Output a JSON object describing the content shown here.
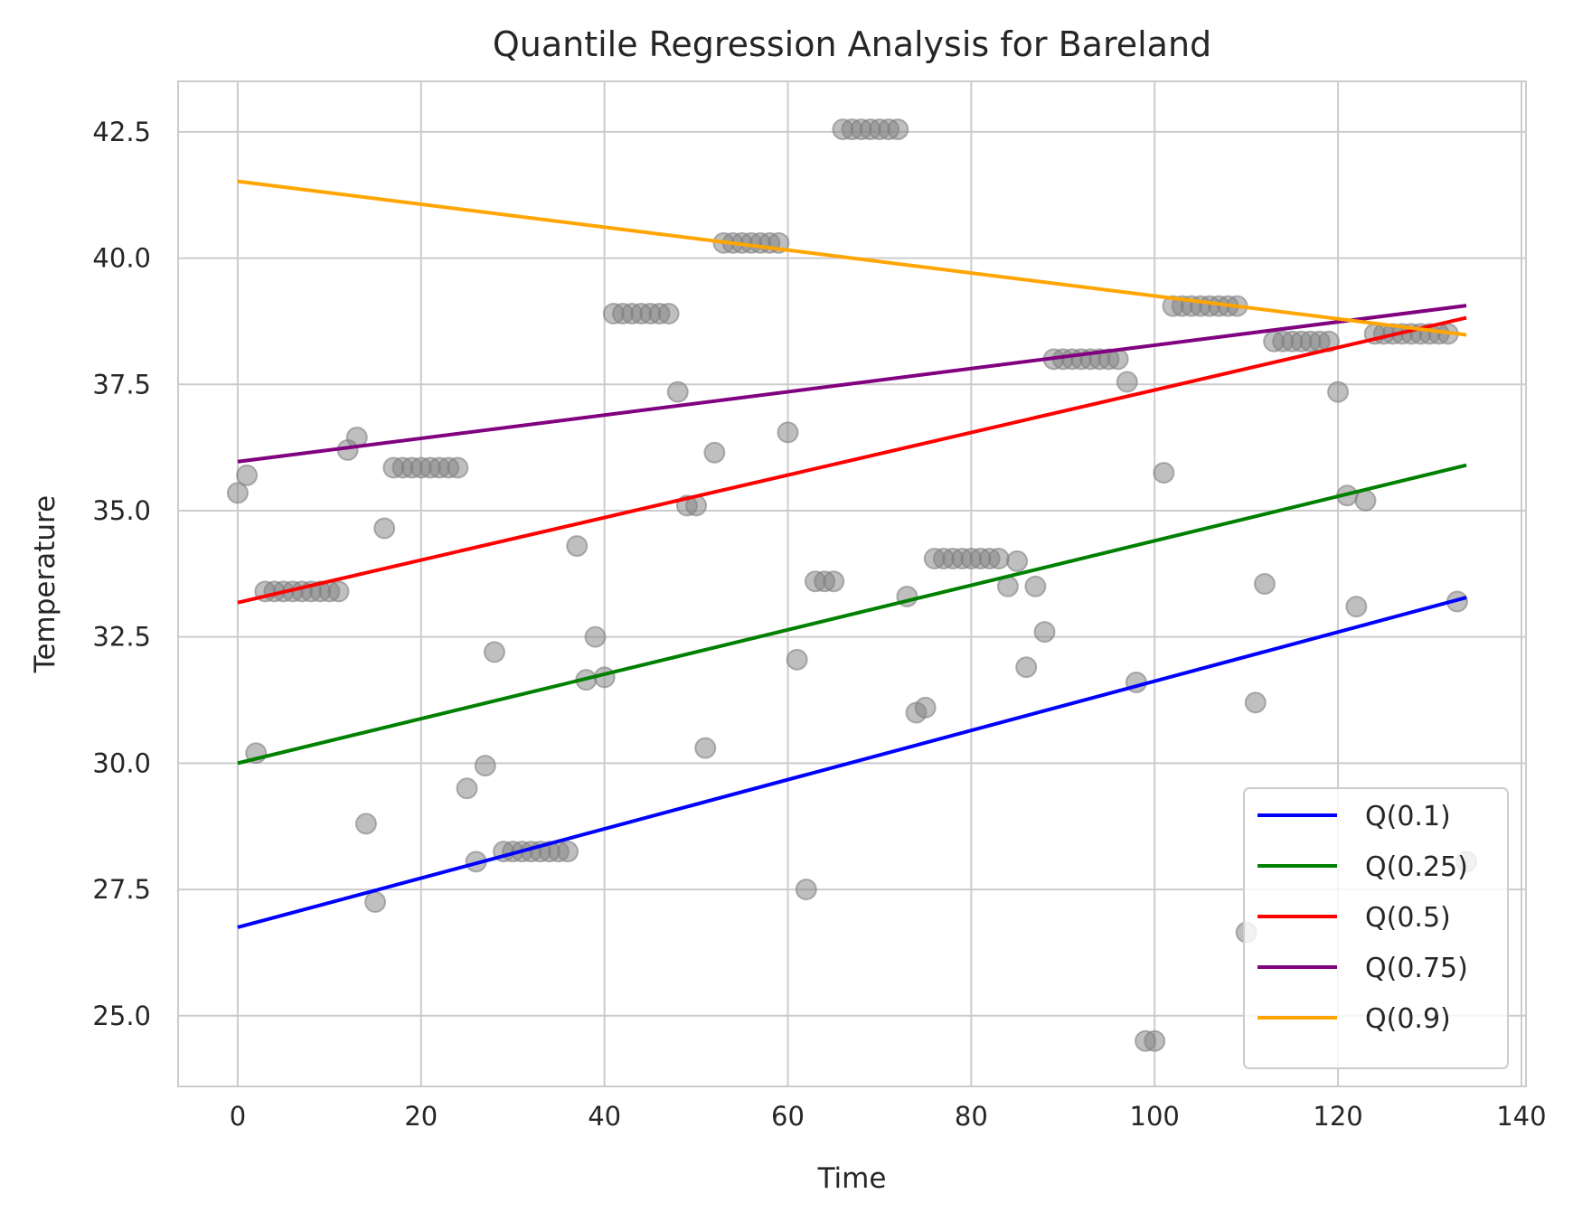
{
  "chart_data": {
    "type": "scatter",
    "title": "Quantile Regression Analysis for Bareland",
    "xlabel": "Time",
    "ylabel": "Temperature",
    "xlim": [
      -6.5,
      140.5
    ],
    "ylim": [
      23.6,
      43.5
    ],
    "xticks": [
      0,
      20,
      40,
      60,
      80,
      100,
      120,
      140
    ],
    "yticks": [
      25.0,
      27.5,
      30.0,
      32.5,
      35.0,
      37.5,
      40.0,
      42.5
    ],
    "ytick_labels": [
      "25.0",
      "27.5",
      "30.0",
      "32.5",
      "35.0",
      "37.5",
      "40.0",
      "42.5"
    ],
    "xtick_labels": [
      "0",
      "20",
      "40",
      "60",
      "80",
      "100",
      "120",
      "140"
    ],
    "grid": true,
    "legend_position": "bottom-right",
    "points_color": "#808080",
    "points": [
      [
        0,
        35.35
      ],
      [
        1,
        35.7
      ],
      [
        2,
        30.2
      ],
      [
        3,
        33.4
      ],
      [
        4,
        33.4
      ],
      [
        5,
        33.4
      ],
      [
        6,
        33.4
      ],
      [
        7,
        33.4
      ],
      [
        8,
        33.4
      ],
      [
        9,
        33.4
      ],
      [
        10,
        33.4
      ],
      [
        11,
        33.4
      ],
      [
        12,
        36.2
      ],
      [
        13,
        36.45
      ],
      [
        14,
        28.8
      ],
      [
        15,
        27.25
      ],
      [
        16,
        34.65
      ],
      [
        17,
        35.85
      ],
      [
        18,
        35.85
      ],
      [
        19,
        35.85
      ],
      [
        20,
        35.85
      ],
      [
        21,
        35.85
      ],
      [
        22,
        35.85
      ],
      [
        23,
        35.85
      ],
      [
        24,
        35.85
      ],
      [
        25,
        29.5
      ],
      [
        26,
        28.05
      ],
      [
        27,
        29.95
      ],
      [
        28,
        32.2
      ],
      [
        29,
        28.25
      ],
      [
        30,
        28.25
      ],
      [
        31,
        28.25
      ],
      [
        32,
        28.25
      ],
      [
        33,
        28.25
      ],
      [
        34,
        28.25
      ],
      [
        35,
        28.25
      ],
      [
        36,
        28.25
      ],
      [
        37,
        34.3
      ],
      [
        38,
        31.65
      ],
      [
        39,
        32.5
      ],
      [
        40,
        31.7
      ],
      [
        41,
        38.9
      ],
      [
        42,
        38.9
      ],
      [
        43,
        38.9
      ],
      [
        44,
        38.9
      ],
      [
        45,
        38.9
      ],
      [
        46,
        38.9
      ],
      [
        47,
        38.9
      ],
      [
        48,
        37.35
      ],
      [
        49,
        35.1
      ],
      [
        50,
        35.1
      ],
      [
        51,
        30.3
      ],
      [
        52,
        36.15
      ],
      [
        53,
        40.3
      ],
      [
        54,
        40.3
      ],
      [
        55,
        40.3
      ],
      [
        56,
        40.3
      ],
      [
        57,
        40.3
      ],
      [
        58,
        40.3
      ],
      [
        59,
        40.3
      ],
      [
        60,
        36.55
      ],
      [
        61,
        32.05
      ],
      [
        62,
        27.5
      ],
      [
        63,
        33.6
      ],
      [
        64,
        33.6
      ],
      [
        65,
        33.6
      ],
      [
        66,
        42.55
      ],
      [
        67,
        42.55
      ],
      [
        68,
        42.55
      ],
      [
        69,
        42.55
      ],
      [
        70,
        42.55
      ],
      [
        71,
        42.55
      ],
      [
        72,
        42.55
      ],
      [
        73,
        33.3
      ],
      [
        74,
        31.0
      ],
      [
        75,
        31.1
      ],
      [
        76,
        34.05
      ],
      [
        77,
        34.05
      ],
      [
        78,
        34.05
      ],
      [
        79,
        34.05
      ],
      [
        80,
        34.05
      ],
      [
        81,
        34.05
      ],
      [
        82,
        34.05
      ],
      [
        83,
        34.05
      ],
      [
        84,
        33.5
      ],
      [
        85,
        34.0
      ],
      [
        86,
        31.9
      ],
      [
        87,
        33.5
      ],
      [
        88,
        32.6
      ],
      [
        89,
        38.0
      ],
      [
        90,
        38.0
      ],
      [
        91,
        38.0
      ],
      [
        92,
        38.0
      ],
      [
        93,
        38.0
      ],
      [
        94,
        38.0
      ],
      [
        95,
        38.0
      ],
      [
        96,
        38.0
      ],
      [
        97,
        37.55
      ],
      [
        98,
        31.6
      ],
      [
        99,
        24.5
      ],
      [
        100,
        24.5
      ],
      [
        101,
        35.75
      ],
      [
        102,
        39.05
      ],
      [
        103,
        39.05
      ],
      [
        104,
        39.05
      ],
      [
        105,
        39.05
      ],
      [
        106,
        39.05
      ],
      [
        107,
        39.05
      ],
      [
        108,
        39.05
      ],
      [
        109,
        39.05
      ],
      [
        110,
        26.65
      ],
      [
        111,
        31.2
      ],
      [
        112,
        33.55
      ],
      [
        113,
        38.35
      ],
      [
        114,
        38.35
      ],
      [
        115,
        38.35
      ],
      [
        116,
        38.35
      ],
      [
        117,
        38.35
      ],
      [
        118,
        38.35
      ],
      [
        119,
        38.35
      ],
      [
        120,
        37.35
      ],
      [
        121,
        35.3
      ],
      [
        122,
        33.1
      ],
      [
        123,
        35.2
      ],
      [
        124,
        38.5
      ],
      [
        125,
        38.5
      ],
      [
        126,
        38.5
      ],
      [
        127,
        38.5
      ],
      [
        128,
        38.5
      ],
      [
        129,
        38.5
      ],
      [
        130,
        38.5
      ],
      [
        131,
        38.5
      ],
      [
        132,
        38.5
      ],
      [
        133,
        33.2
      ],
      [
        134,
        28.05
      ]
    ],
    "series": [
      {
        "name": "Q(0.1)",
        "color": "#0000ff",
        "x": [
          0,
          134
        ],
        "y": [
          26.75,
          33.28
        ]
      },
      {
        "name": "Q(0.25)",
        "color": "#008000",
        "x": [
          0,
          134
        ],
        "y": [
          30.0,
          35.9
        ]
      },
      {
        "name": "Q(0.5)",
        "color": "#ff0000",
        "x": [
          0,
          134
        ],
        "y": [
          33.18,
          38.82
        ]
      },
      {
        "name": "Q(0.75)",
        "color": "#800080",
        "x": [
          0,
          134
        ],
        "y": [
          35.97,
          39.06
        ]
      },
      {
        "name": "Q(0.9)",
        "color": "#ffa500",
        "x": [
          0,
          134
        ],
        "y": [
          41.52,
          38.48
        ]
      }
    ]
  }
}
